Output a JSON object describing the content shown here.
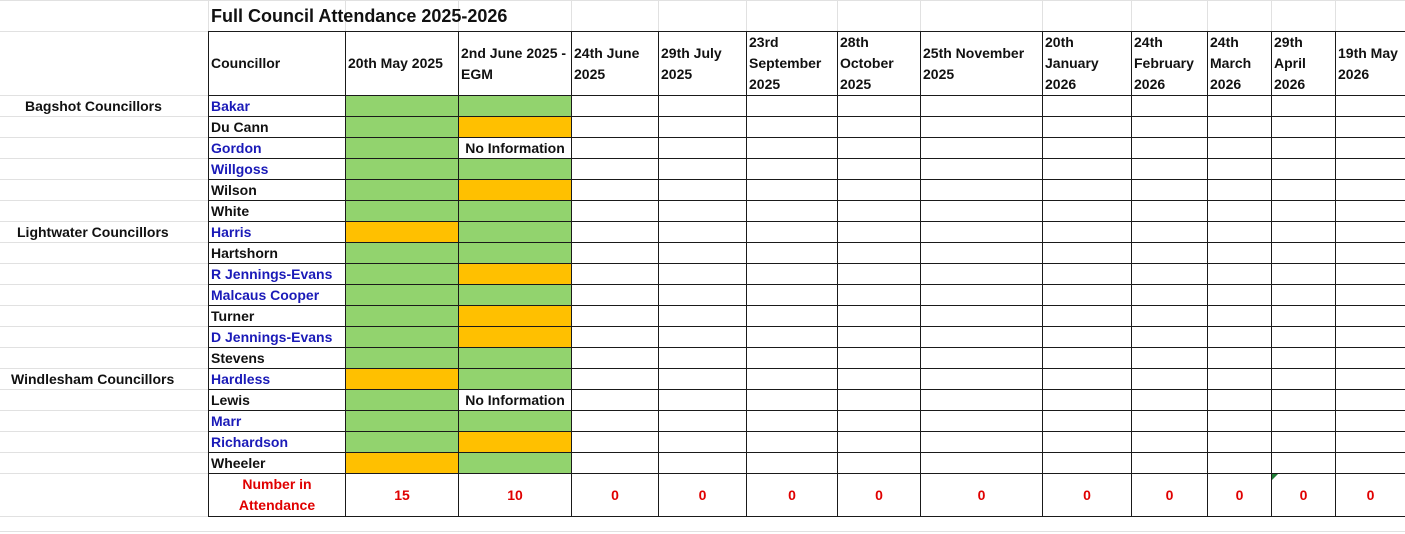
{
  "title": "Full Council Attendance 2025-2026",
  "groups": {
    "bagshot": "Bagshot Councillors",
    "lightwater": "Lightwater Councillors",
    "windlesham": "Windlesham Councillors"
  },
  "header": {
    "councillor": "Councillor",
    "dates": [
      "20th  May 2025",
      "2nd June 2025 - EGM",
      "24th June 2025",
      "29th July 2025",
      "23rd September 2025",
      "28th October 2025",
      "25th November 2025",
      "20th January 2026",
      "24th February 2026",
      "24th March 2026",
      "29th April 2026",
      "19th May 2026"
    ]
  },
  "legend_colors": {
    "attended": "#92d36e",
    "absent": "#ffc000",
    "total_text": "#e00000",
    "blue_name": "#1a1ab8"
  },
  "rows": [
    {
      "name": "Bakar",
      "blue": true,
      "m1": "attended",
      "m2": "attended",
      "m2_text": ""
    },
    {
      "name": "Du Cann",
      "blue": false,
      "m1": "attended",
      "m2": "absent",
      "m2_text": ""
    },
    {
      "name": "Gordon",
      "blue": true,
      "m1": "attended",
      "m2": "none",
      "m2_text": "No Information"
    },
    {
      "name": "Willgoss",
      "blue": true,
      "m1": "attended",
      "m2": "attended",
      "m2_text": ""
    },
    {
      "name": "Wilson",
      "blue": false,
      "m1": "attended",
      "m2": "absent",
      "m2_text": ""
    },
    {
      "name": "White",
      "blue": false,
      "m1": "attended",
      "m2": "attended",
      "m2_text": ""
    },
    {
      "name": "Harris",
      "blue": true,
      "m1": "absent",
      "m2": "attended",
      "m2_text": ""
    },
    {
      "name": "Hartshorn",
      "blue": false,
      "m1": "attended",
      "m2": "attended",
      "m2_text": ""
    },
    {
      "name": "R Jennings-Evans",
      "blue": true,
      "m1": "attended",
      "m2": "absent",
      "m2_text": ""
    },
    {
      "name": "Malcaus Cooper",
      "blue": true,
      "m1": "attended",
      "m2": "attended",
      "m2_text": ""
    },
    {
      "name": "Turner",
      "blue": false,
      "m1": "attended",
      "m2": "absent",
      "m2_text": ""
    },
    {
      "name": "D Jennings-Evans",
      "blue": true,
      "m1": "attended",
      "m2": "absent",
      "m2_text": ""
    },
    {
      "name": "Stevens",
      "blue": false,
      "m1": "attended",
      "m2": "attended",
      "m2_text": ""
    },
    {
      "name": "Hardless",
      "blue": true,
      "m1": "absent",
      "m2": "attended",
      "m2_text": ""
    },
    {
      "name": "Lewis",
      "blue": false,
      "m1": "attended",
      "m2": "none",
      "m2_text": "No Information"
    },
    {
      "name": "Marr",
      "blue": true,
      "m1": "attended",
      "m2": "attended",
      "m2_text": ""
    },
    {
      "name": "Richardson",
      "blue": true,
      "m1": "attended",
      "m2": "absent",
      "m2_text": ""
    },
    {
      "name": "Wheeler",
      "blue": false,
      "m1": "absent",
      "m2": "attended",
      "m2_text": ""
    }
  ],
  "totals": {
    "label": "Number in Attendance",
    "values": [
      "15",
      "10",
      "0",
      "0",
      "0",
      "0",
      "0",
      "0",
      "0",
      "0",
      "0",
      "0"
    ]
  }
}
